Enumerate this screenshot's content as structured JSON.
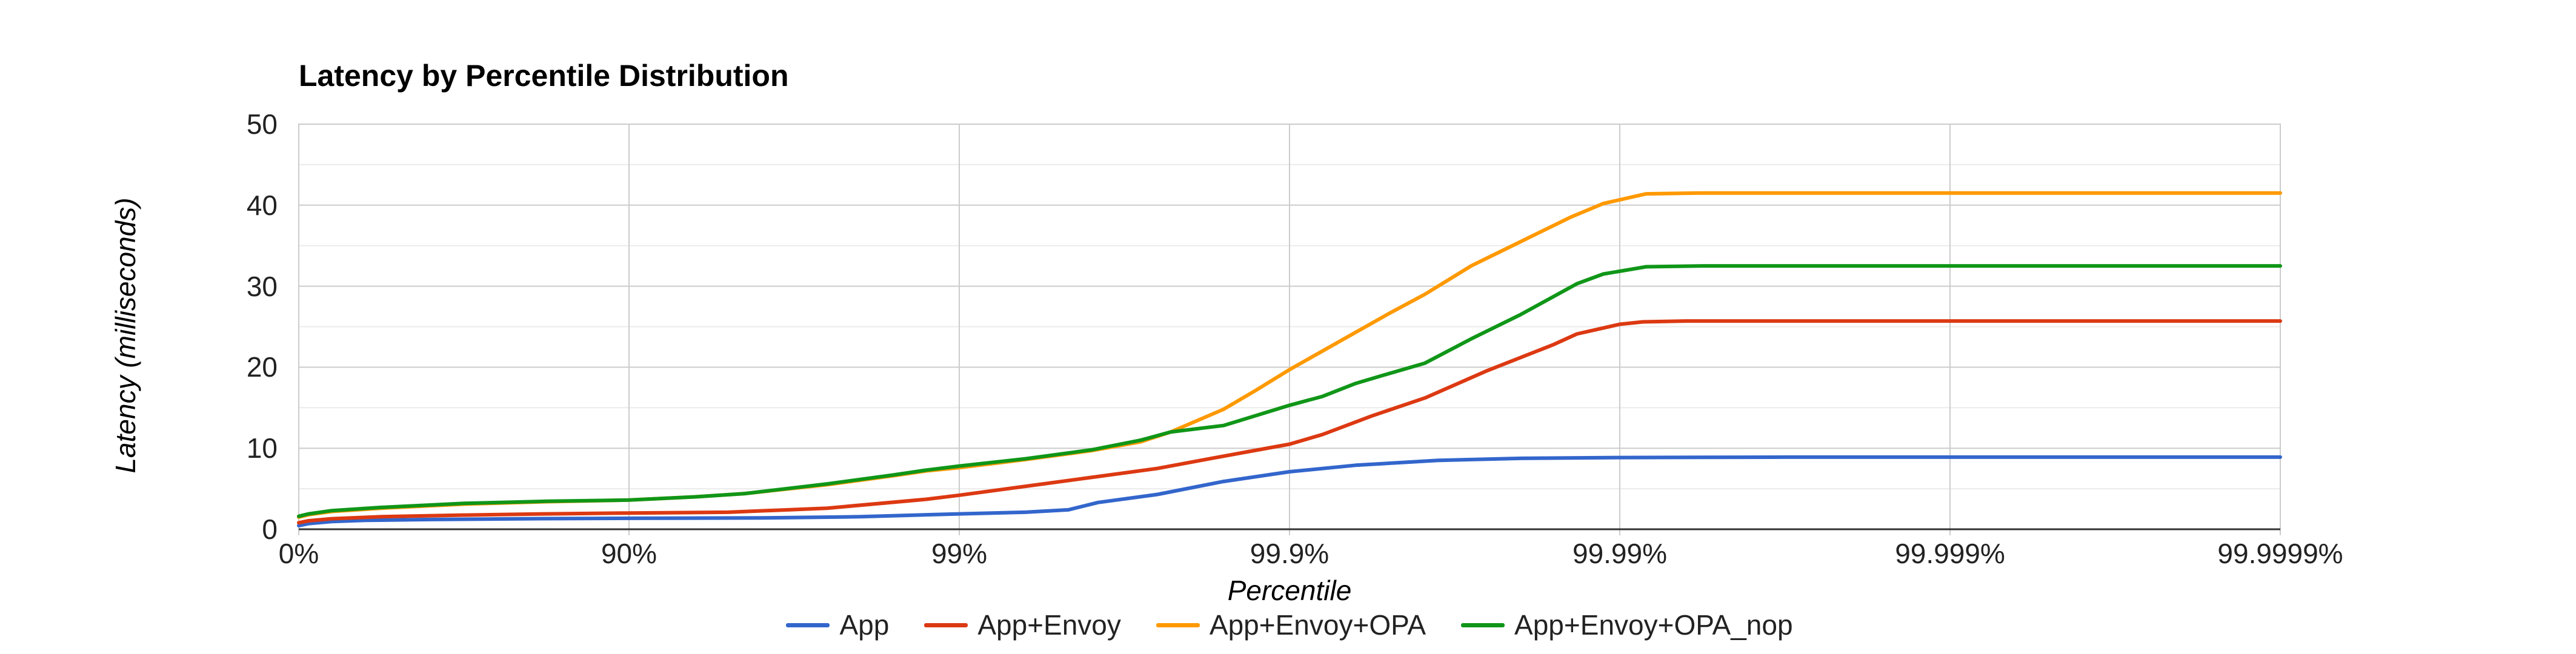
{
  "chart": {
    "title": "Latency by Percentile Distribution",
    "x_axis_title": "Percentile",
    "y_axis_title": "Latency (milliseconds)"
  },
  "chart_data": {
    "type": "line",
    "title": "Latency by Percentile Distribution",
    "xlabel": "Percentile",
    "ylabel": "Latency (milliseconds)",
    "x_scale": "log-percentile",
    "x_scale_note": "x position is decades of 1/(1-p); ticks evenly spaced per decade",
    "x_tick_labels": [
      "0%",
      "90%",
      "99%",
      "99.9%",
      "99.99%",
      "99.999%",
      "99.9999%"
    ],
    "x_tick_decades": [
      0,
      1,
      2,
      3,
      4,
      5,
      6
    ],
    "xlim_decades": [
      0,
      6
    ],
    "y_major_ticks": [
      0,
      10,
      20,
      30,
      40,
      50
    ],
    "y_minor_ticks": [
      5,
      15,
      25,
      35,
      45
    ],
    "ylim": [
      0,
      50
    ],
    "grid": true,
    "legend_position": "bottom-center",
    "grid_color_major": "#cccccc",
    "grid_color_minor": "#ebebeb",
    "axis_line_color": "#333333",
    "series": [
      {
        "name": "App",
        "color": "#3366CC",
        "plateau_ms": 8.9,
        "points_decade_ms": [
          [
            0,
            0.45
          ],
          [
            0.03,
            0.7
          ],
          [
            0.1,
            0.95
          ],
          [
            0.2,
            1.1
          ],
          [
            0.4,
            1.2
          ],
          [
            0.7,
            1.3
          ],
          [
            1,
            1.35
          ],
          [
            1.4,
            1.4
          ],
          [
            1.7,
            1.55
          ],
          [
            2,
            1.9
          ],
          [
            2.2,
            2.1
          ],
          [
            2.33,
            2.4
          ],
          [
            2.42,
            3.3
          ],
          [
            2.6,
            4.3
          ],
          [
            2.8,
            5.9
          ],
          [
            3,
            7.1
          ],
          [
            3.2,
            7.9
          ],
          [
            3.45,
            8.5
          ],
          [
            3.7,
            8.75
          ],
          [
            4,
            8.85
          ],
          [
            4.5,
            8.9
          ],
          [
            5,
            8.9
          ],
          [
            5.5,
            8.9
          ],
          [
            6,
            8.9
          ]
        ]
      },
      {
        "name": "App+Envoy",
        "color": "#DC3912",
        "plateau_ms": 25.7,
        "points_decade_ms": [
          [
            0,
            0.8
          ],
          [
            0.03,
            1.05
          ],
          [
            0.1,
            1.3
          ],
          [
            0.25,
            1.55
          ],
          [
            0.5,
            1.75
          ],
          [
            0.75,
            1.9
          ],
          [
            1,
            2.0
          ],
          [
            1.3,
            2.1
          ],
          [
            1.6,
            2.6
          ],
          [
            1.9,
            3.7
          ],
          [
            2,
            4.2
          ],
          [
            2.2,
            5.3
          ],
          [
            2.4,
            6.4
          ],
          [
            2.6,
            7.5
          ],
          [
            2.77,
            8.8
          ],
          [
            3,
            10.5
          ],
          [
            3.1,
            11.7
          ],
          [
            3.25,
            14.0
          ],
          [
            3.41,
            16.2
          ],
          [
            3.6,
            19.6
          ],
          [
            3.8,
            22.8
          ],
          [
            3.87,
            24.1
          ],
          [
            4.0,
            25.3
          ],
          [
            4.07,
            25.6
          ],
          [
            4.2,
            25.7
          ],
          [
            4.6,
            25.7
          ],
          [
            5,
            25.7
          ],
          [
            5.5,
            25.7
          ],
          [
            6,
            25.7
          ]
        ]
      },
      {
        "name": "App+Envoy+OPA",
        "color": "#FF9900",
        "plateau_ms": 41.5,
        "points_decade_ms": [
          [
            0,
            1.5
          ],
          [
            0.03,
            1.8
          ],
          [
            0.1,
            2.2
          ],
          [
            0.25,
            2.6
          ],
          [
            0.5,
            3.1
          ],
          [
            0.75,
            3.4
          ],
          [
            1,
            3.6
          ],
          [
            1.2,
            4.0
          ],
          [
            1.35,
            4.4
          ],
          [
            1.6,
            5.5
          ],
          [
            1.8,
            6.6
          ],
          [
            1.9,
            7.2
          ],
          [
            2,
            7.6
          ],
          [
            2.2,
            8.6
          ],
          [
            2.4,
            9.7
          ],
          [
            2.55,
            10.8
          ],
          [
            2.64,
            12.0
          ],
          [
            2.8,
            14.8
          ],
          [
            2.9,
            17.2
          ],
          [
            3,
            19.7
          ],
          [
            3.1,
            22.0
          ],
          [
            3.2,
            24.3
          ],
          [
            3.3,
            26.6
          ],
          [
            3.41,
            29.0
          ],
          [
            3.55,
            32.5
          ],
          [
            3.7,
            35.5
          ],
          [
            3.85,
            38.5
          ],
          [
            3.95,
            40.2
          ],
          [
            4.08,
            41.4
          ],
          [
            4.25,
            41.5
          ],
          [
            4.6,
            41.5
          ],
          [
            5,
            41.5
          ],
          [
            5.5,
            41.5
          ],
          [
            6,
            41.5
          ]
        ]
      },
      {
        "name": "App+Envoy+OPA_nop",
        "color": "#109618",
        "plateau_ms": 32.5,
        "points_decade_ms": [
          [
            0,
            1.6
          ],
          [
            0.03,
            1.9
          ],
          [
            0.1,
            2.3
          ],
          [
            0.25,
            2.7
          ],
          [
            0.5,
            3.2
          ],
          [
            0.75,
            3.45
          ],
          [
            1,
            3.6
          ],
          [
            1.2,
            4.0
          ],
          [
            1.35,
            4.4
          ],
          [
            1.6,
            5.6
          ],
          [
            1.8,
            6.7
          ],
          [
            1.9,
            7.3
          ],
          [
            2,
            7.8
          ],
          [
            2.2,
            8.7
          ],
          [
            2.4,
            9.8
          ],
          [
            2.55,
            11.0
          ],
          [
            2.64,
            12.0
          ],
          [
            2.8,
            12.8
          ],
          [
            3,
            15.3
          ],
          [
            3.1,
            16.4
          ],
          [
            3.2,
            18.0
          ],
          [
            3.3,
            19.2
          ],
          [
            3.41,
            20.5
          ],
          [
            3.55,
            23.5
          ],
          [
            3.7,
            26.5
          ],
          [
            3.87,
            30.3
          ],
          [
            3.95,
            31.5
          ],
          [
            4.08,
            32.4
          ],
          [
            4.25,
            32.5
          ],
          [
            4.6,
            32.5
          ],
          [
            5,
            32.5
          ],
          [
            5.5,
            32.5
          ],
          [
            6,
            32.5
          ]
        ]
      }
    ]
  }
}
